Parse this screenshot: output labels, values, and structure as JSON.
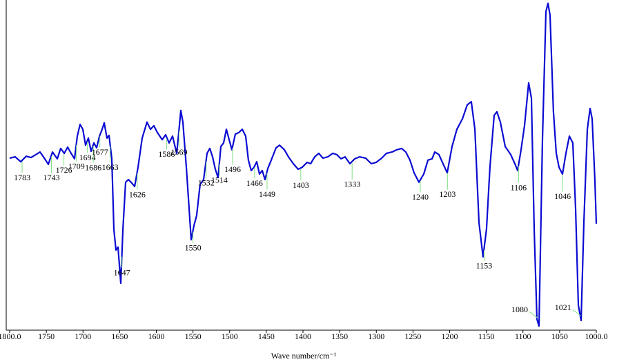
{
  "chart_data": {
    "type": "line",
    "x_label": "Wave number/cm⁻¹",
    "xlim": [
      1800,
      1000
    ],
    "ylim": [
      0,
      100
    ],
    "xticks": [
      {
        "value": 1800,
        "label": "1800.0"
      },
      1750,
      1700,
      1650,
      1600,
      1550,
      1500,
      1450,
      1400,
      1350,
      1300,
      1250,
      1200,
      1150,
      1100,
      1050,
      {
        "value": 1000,
        "label": "1000.0"
      }
    ],
    "x": [
      1800,
      1792.5,
      1784.9,
      1777.4,
      1770.8,
      1764.2,
      1758.6,
      1753.9,
      1747.3,
      1741.6,
      1735.1,
      1730.4,
      1725.6,
      1720.9,
      1716.2,
      1711.5,
      1707.8,
      1704.0,
      1700.2,
      1696.5,
      1692.7,
      1688.9,
      1685.2,
      1681.4,
      1677.6,
      1673.9,
      1671.1,
      1667.3,
      1664.5,
      1660.7,
      1657.9,
      1655.1,
      1652.2,
      1648.5,
      1645.6,
      1641.9,
      1638.1,
      1634.4,
      1629.6,
      1624.9,
      1619.3,
      1612.7,
      1608.0,
      1603.3,
      1598.6,
      1592.0,
      1587.3,
      1582.6,
      1577.9,
      1572.2,
      1569.4,
      1566.6,
      1563.8,
      1559.1,
      1555.3,
      1552.5,
      1548.7,
      1545.0,
      1540.3,
      1535.5,
      1530.8,
      1527.1,
      1523.3,
      1519.5,
      1515.8,
      1512.0,
      1508.2,
      1504.5,
      1500.7,
      1496.9,
      1492.2,
      1487.5,
      1482.8,
      1478.1,
      1474.4,
      1470.6,
      1466.8,
      1463.1,
      1459.3,
      1455.5,
      1451.8,
      1448.0,
      1443.3,
      1436.7,
      1432.0,
      1425.4,
      1419.8,
      1413.2,
      1406.6,
      1401.0,
      1394.4,
      1389.6,
      1384.0,
      1378.4,
      1372.7,
      1366.1,
      1359.5,
      1353.9,
      1348.2,
      1342.6,
      1336.0,
      1329.4,
      1322.8,
      1314.4,
      1306.8,
      1300.2,
      1292.7,
      1286.1,
      1278.6,
      1272.0,
      1265.4,
      1259.8,
      1254.1,
      1248.5,
      1241.9,
      1235.3,
      1229.6,
      1224.0,
      1220.2,
      1214.6,
      1209.0,
      1203.3,
      1196.7,
      1190.1,
      1182.6,
      1176.0,
      1170.4,
      1165.6,
      1160.0,
      1154.4,
      1149.7,
      1145.0,
      1139.3,
      1135.5,
      1130.8,
      1124.2,
      1116.7,
      1111.1,
      1107.3,
      1102.6,
      1097.9,
      1092.2,
      1088.5,
      1084.7,
      1080.9,
      1078.1,
      1073.4,
      1068.7,
      1065.9,
      1063.1,
      1058.4,
      1054.6,
      1050.8,
      1046.1,
      1041.4,
      1036.7,
      1032.0,
      1028.2,
      1024.5,
      1020.7,
      1016.9,
      1012.2,
      1008.5,
      1005.6,
      1001.9,
      1000.0
    ],
    "series": [
      {
        "color": "#0a0ad2",
        "values": [
          51.7,
          52.1,
          50.6,
          52.3,
          51.9,
          52.8,
          53.6,
          52.1,
          49.8,
          53.6,
          51.5,
          54.7,
          53.2,
          55.1,
          53.2,
          51.5,
          58.5,
          62.1,
          60.6,
          55.7,
          57.9,
          53.8,
          56.4,
          54.9,
          58.5,
          60.6,
          62.6,
          57.9,
          58.7,
          51.5,
          29.8,
          23.4,
          24.3,
          13.2,
          29.8,
          44.3,
          45.1,
          44.3,
          43.0,
          48.9,
          57.9,
          62.8,
          60.6,
          61.7,
          59.6,
          57.4,
          58.9,
          56.4,
          58.5,
          53.2,
          59.6,
          66.4,
          62.8,
          48.9,
          36.2,
          26.6,
          30.9,
          34.0,
          43.6,
          45.1,
          53.2,
          54.7,
          52.1,
          48.3,
          45.7,
          55.3,
          56.4,
          60.6,
          57.4,
          54.3,
          59.1,
          59.6,
          60.6,
          58.5,
          51.1,
          47.9,
          48.9,
          50.6,
          46.8,
          47.9,
          45.1,
          48.5,
          51.1,
          54.9,
          55.7,
          54.3,
          52.1,
          50.0,
          48.3,
          48.9,
          50.4,
          50.0,
          52.1,
          53.2,
          51.7,
          52.1,
          53.2,
          52.8,
          51.5,
          52.1,
          50.0,
          51.5,
          52.1,
          51.7,
          50.0,
          50.4,
          51.7,
          53.2,
          53.6,
          54.3,
          54.7,
          53.6,
          51.1,
          47.2,
          44.3,
          46.8,
          51.1,
          51.5,
          53.6,
          52.8,
          50.0,
          47.2,
          55.3,
          60.6,
          63.8,
          68.1,
          69.1,
          60.6,
          31.9,
          21.3,
          29.8,
          48.9,
          64.9,
          66.0,
          62.8,
          55.3,
          52.8,
          50.0,
          47.9,
          54.3,
          61.7,
          74.9,
          70.2,
          29.8,
          2.1,
          0,
          57.4,
          96.8,
          99.4,
          95.7,
          66.0,
          53.2,
          48.9,
          46.8,
          53.2,
          58.5,
          56.4,
          36.2,
          6.4,
          1.7,
          31.9,
          60.6,
          67.0,
          63.8,
          44.7,
          31.5
        ]
      }
    ],
    "peak_labels": [
      1783,
      1743,
      1726,
      1709,
      1694,
      1686,
      1677,
      1663,
      1647,
      1626,
      1586,
      1569,
      1550,
      1532,
      1514,
      1496,
      1466,
      1449,
      1403,
      1333,
      1240,
      1203,
      1153,
      1106,
      1080,
      1046,
      1021
    ],
    "peak_color": "#7ee07e"
  }
}
